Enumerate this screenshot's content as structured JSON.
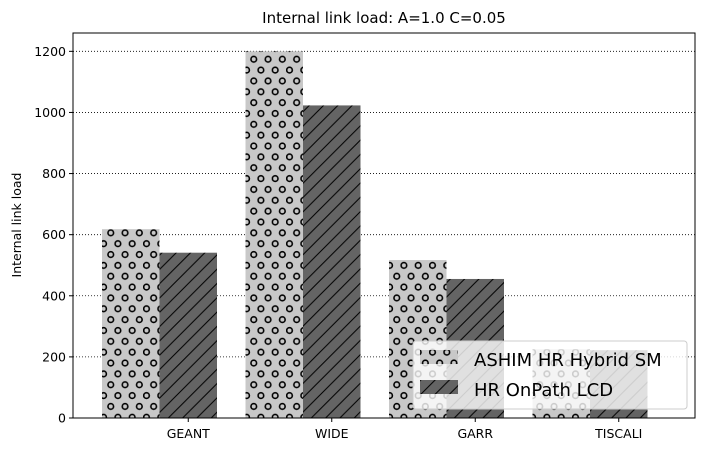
{
  "chart_data": {
    "type": "bar",
    "title": "Internal link load: A=1.0 C=0.05",
    "xlabel": "",
    "ylabel": "Internal link load",
    "categories": [
      "GEANT",
      "WIDE",
      "GARR",
      "TISCALI"
    ],
    "ylim": [
      0,
      1260
    ],
    "yticks": [
      0,
      200,
      400,
      600,
      800,
      1000,
      1200
    ],
    "grid": "horizontal dotted",
    "legend_position": "lower right",
    "series": [
      {
        "name": "ASHIM HR Hybrid SM",
        "values": [
          618,
          1200,
          517,
          225
        ],
        "color": "#c8c8c8",
        "hatch": "circles"
      },
      {
        "name": "HR OnPath LCD",
        "values": [
          541,
          1023,
          455,
          222
        ],
        "color": "#646464",
        "hatch": "diagonal"
      }
    ]
  }
}
